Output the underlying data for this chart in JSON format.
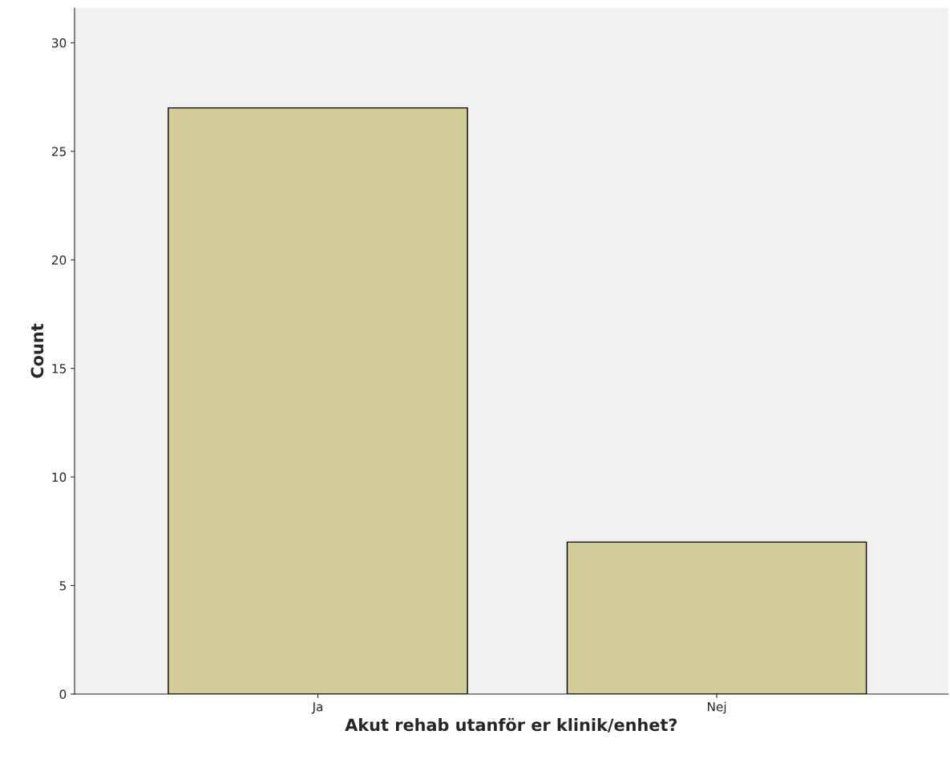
{
  "chart_data": {
    "type": "bar",
    "xlabel": "Akut rehab utanför er klinik/enhet?",
    "ylabel": "Count",
    "categories": [
      "Ja",
      "Nej"
    ],
    "values": [
      27,
      7
    ],
    "color": "#d3ce97",
    "ylim": [
      0,
      31.6
    ],
    "yticks": [
      0,
      5,
      10,
      15,
      20,
      25,
      30
    ],
    "grid": false
  }
}
